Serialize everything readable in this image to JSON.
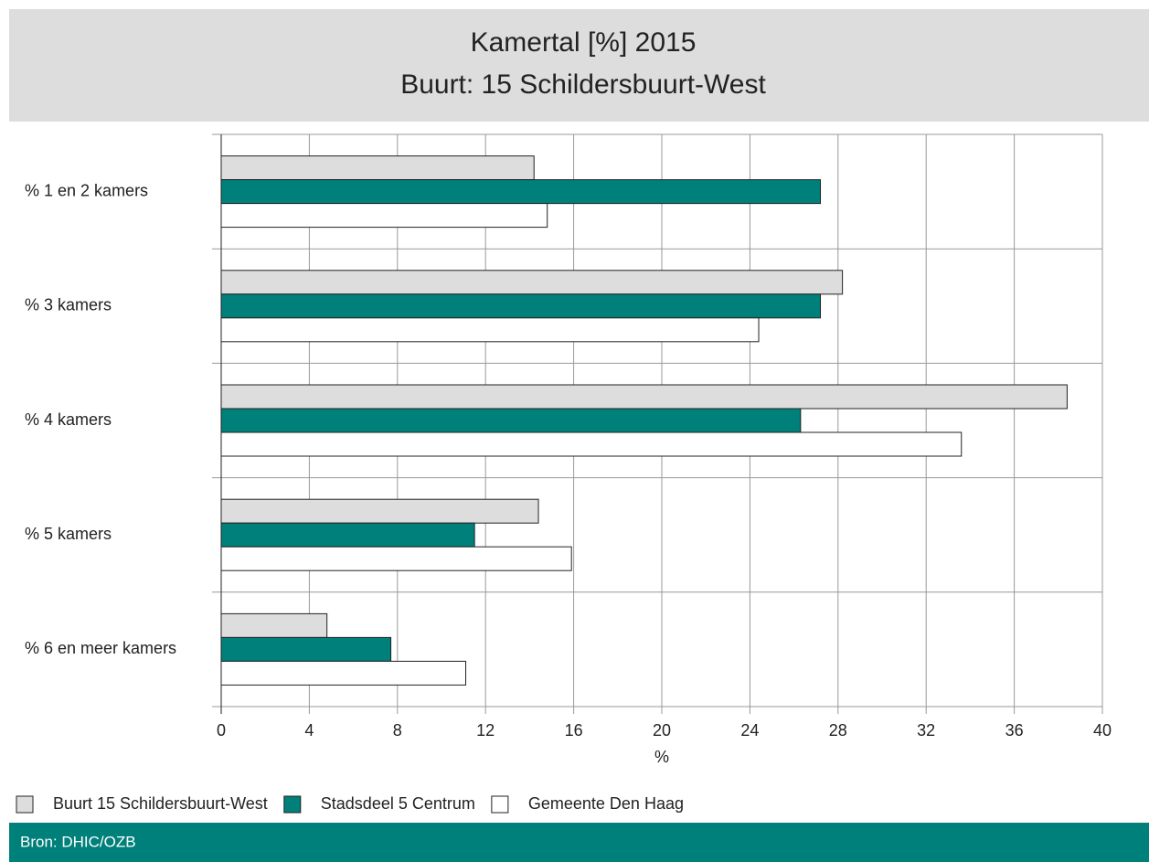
{
  "chart_data": {
    "type": "barh",
    "title": "Kamertal [%] 2015",
    "subtitle": "Buurt: 15 Schildersbuurt-West",
    "categories": [
      "% 1 en 2 kamers",
      "% 3 kamers",
      "% 4 kamers",
      "% 5 kamers",
      "% 6 en meer kamers"
    ],
    "series": [
      {
        "name": "Buurt 15 Schildersbuurt-West",
        "color": "#dddddd",
        "values": [
          14.2,
          28.2,
          38.4,
          14.4,
          4.8
        ]
      },
      {
        "name": "Stadsdeel 5 Centrum",
        "color": "#00807a",
        "values": [
          27.2,
          27.2,
          26.3,
          11.5,
          7.7
        ]
      },
      {
        "name": "Gemeente Den Haag",
        "color": "#ffffff",
        "values": [
          14.8,
          24.4,
          33.6,
          15.9,
          11.1
        ]
      }
    ],
    "xlabel": "%",
    "xlim": [
      0,
      40
    ],
    "xticks": [
      0,
      4,
      8,
      12,
      16,
      20,
      24,
      28,
      32,
      36,
      40
    ],
    "grid": true,
    "legend": "bottom",
    "source": "Bron: DHIC/OZB"
  }
}
